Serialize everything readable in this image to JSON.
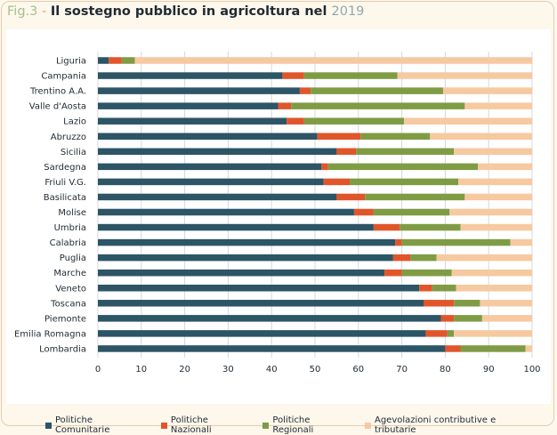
{
  "header": {
    "prefix": "Fig.3",
    "separator": " - ",
    "title": "Il sostegno pubblico in agricoltura nel ",
    "year": "2019"
  },
  "colors": {
    "comunitarie": "#2c5566",
    "nazionali": "#e0562a",
    "regionali": "#7f9c45",
    "agevolazioni": "#f6c9a1",
    "grid": "#d4d9dc",
    "text": "#1f2a33"
  },
  "chart_data": {
    "type": "bar",
    "orientation": "horizontal",
    "stacked": true,
    "title": "Il sostegno pubblico in agricoltura nel 2019",
    "xlabel": "",
    "ylabel": "",
    "xlim": [
      0,
      100
    ],
    "xticks": [
      0,
      10,
      20,
      30,
      40,
      50,
      60,
      70,
      80,
      90,
      100
    ],
    "grid": "vertical",
    "legend_position": "bottom",
    "categories": [
      "Liguria",
      "Campania",
      "Trentino A.A.",
      "Valle d'Aosta",
      "Lazio",
      "Abruzzo",
      "Sicilia",
      "Sardegna",
      "Friuli V.G.",
      "Basilicata",
      "Molise",
      "Umbria",
      "Calabria",
      "Puglia",
      "Marche",
      "Veneto",
      "Toscana",
      "Piemonte",
      "Emilia Romagna",
      "Lombardia"
    ],
    "series": [
      {
        "name": "Politiche Comunitarie",
        "values": [
          2.5,
          42.5,
          46.5,
          41.5,
          43.5,
          50.5,
          55,
          51.5,
          52,
          55,
          59,
          63.5,
          68.5,
          68,
          66,
          74,
          75,
          79,
          75.5,
          80
        ]
      },
      {
        "name": "Politiche Nazionali",
        "values": [
          3,
          5,
          2.5,
          3,
          4,
          10,
          4.5,
          1.5,
          6,
          6.5,
          4.5,
          6,
          1.5,
          4,
          4,
          3,
          7,
          3,
          5,
          3.5
        ]
      },
      {
        "name": "Politiche Regionali",
        "values": [
          3,
          21.5,
          30.5,
          40,
          23,
          16,
          22.5,
          34.5,
          25,
          23,
          17.5,
          14,
          25,
          6,
          11.5,
          5.5,
          6,
          6.5,
          1.5,
          15
        ]
      },
      {
        "name": "Agevolazioni contributive e tributarie",
        "values": [
          91.5,
          31,
          20.5,
          15.5,
          29.5,
          23.5,
          18,
          12.5,
          17,
          15.5,
          19,
          16.5,
          5,
          22,
          18.5,
          17.5,
          12,
          11.5,
          18,
          1.5
        ]
      }
    ]
  }
}
